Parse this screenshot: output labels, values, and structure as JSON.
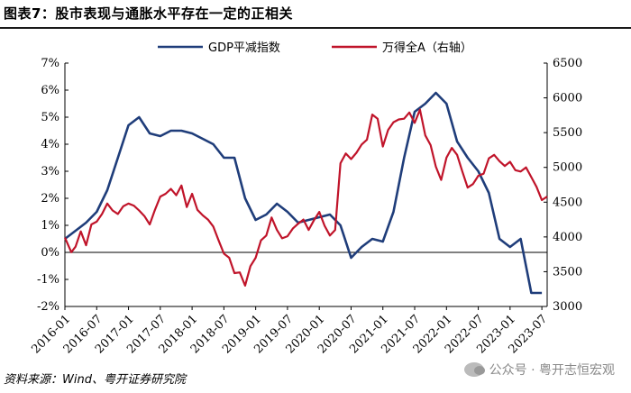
{
  "header": {
    "title": "图表7：股市表现与通胀水平存在一定的正相关"
  },
  "footer": {
    "source": "资料来源：Wind、粤开证券研究院",
    "watermark": "公众号 · 粤开志恒宏观"
  },
  "chart_data": {
    "type": "line",
    "legend_position": "top",
    "grid": false,
    "x_tick_labels": [
      "2016-01",
      "2016-07",
      "2017-01",
      "2017-07",
      "2018-01",
      "2018-07",
      "2019-01",
      "2019-07",
      "2020-01",
      "2020-07",
      "2021-01",
      "2021-07",
      "2022-01",
      "2022-07",
      "2023-01",
      "2023-07"
    ],
    "y_left": {
      "ticks": [
        "-2%",
        "-1%",
        "0%",
        "1%",
        "2%",
        "3%",
        "4%",
        "5%",
        "6%",
        "7%"
      ],
      "min": -2,
      "max": 7
    },
    "y_right": {
      "ticks": [
        "3000",
        "3500",
        "4000",
        "4500",
        "5000",
        "5500",
        "6000",
        "6500"
      ],
      "min": 3000,
      "max": 6500
    },
    "series": [
      {
        "name": "GDP平减指数",
        "axis": "left",
        "color": "#1f3d7a",
        "x": [
          0,
          1,
          2,
          3,
          4,
          5,
          6,
          7,
          8,
          9,
          10,
          11,
          12,
          13,
          14,
          15,
          16,
          17,
          18,
          19,
          20,
          21,
          22,
          23,
          24,
          25,
          26,
          27,
          28,
          29,
          30,
          31,
          32,
          33,
          34,
          35,
          36,
          37,
          38,
          39,
          40,
          41,
          42,
          43,
          44,
          45
        ],
        "values": [
          0.5,
          0.8,
          1.1,
          1.5,
          2.3,
          3.5,
          4.7,
          5.0,
          4.4,
          4.3,
          4.5,
          4.5,
          4.4,
          4.2,
          4.0,
          3.5,
          3.5,
          2.0,
          1.2,
          1.4,
          1.8,
          1.5,
          1.1,
          1.2,
          1.3,
          1.4,
          1.0,
          -0.2,
          0.2,
          0.5,
          0.4,
          1.5,
          3.5,
          5.2,
          5.5,
          5.9,
          5.5,
          4.1,
          3.5,
          3.0,
          2.2,
          0.5,
          0.2,
          0.5,
          -1.5,
          -1.5
        ]
      },
      {
        "name": "万得全A（右轴）",
        "axis": "right",
        "color": "#c0142a",
        "x": [
          0,
          0.6,
          1,
          1.5,
          2,
          2.5,
          3,
          3.5,
          4,
          4.5,
          5,
          5.5,
          6,
          6.5,
          7,
          7.5,
          8,
          8.5,
          9,
          9.5,
          10,
          10.5,
          11,
          11.5,
          12,
          12.5,
          13,
          13.5,
          14,
          14.5,
          15,
          15.5,
          16,
          16.5,
          17,
          17.5,
          18,
          18.5,
          19,
          19.5,
          20,
          20.5,
          21,
          21.5,
          22,
          22.5,
          23,
          23.5,
          24,
          24.5,
          25,
          25.5,
          26,
          26.5,
          27,
          27.5,
          28,
          28.5,
          29,
          29.5,
          30,
          30.5,
          31,
          31.5,
          32,
          32.5,
          33,
          33.5,
          34,
          34.5,
          35,
          35.5,
          36,
          36.5,
          37,
          37.5,
          38,
          38.5,
          39,
          39.5,
          40,
          40.5,
          41,
          41.5,
          42,
          42.5,
          43,
          43.5,
          44,
          44.5,
          45,
          45.5
        ],
        "values": [
          3990,
          3780,
          3860,
          4080,
          3880,
          4180,
          4220,
          4330,
          4480,
          4380,
          4330,
          4440,
          4480,
          4450,
          4380,
          4300,
          4180,
          4390,
          4580,
          4620,
          4690,
          4600,
          4740,
          4430,
          4620,
          4390,
          4310,
          4250,
          4150,
          3950,
          3760,
          3700,
          3480,
          3490,
          3300,
          3580,
          3700,
          3950,
          4020,
          4280,
          4100,
          3980,
          4010,
          4120,
          4190,
          4250,
          4100,
          4240,
          4360,
          4160,
          4020,
          4100,
          5060,
          5200,
          5120,
          5210,
          5330,
          5400,
          5760,
          5700,
          5300,
          5540,
          5650,
          5690,
          5700,
          5790,
          5640,
          5830,
          5460,
          5320,
          5010,
          4820,
          5140,
          5280,
          5180,
          4940,
          4710,
          4760,
          4880,
          4910,
          5130,
          5180,
          5090,
          5020,
          5080,
          4960,
          4940,
          5000,
          4860,
          4720,
          4530,
          4580
        ]
      }
    ]
  }
}
